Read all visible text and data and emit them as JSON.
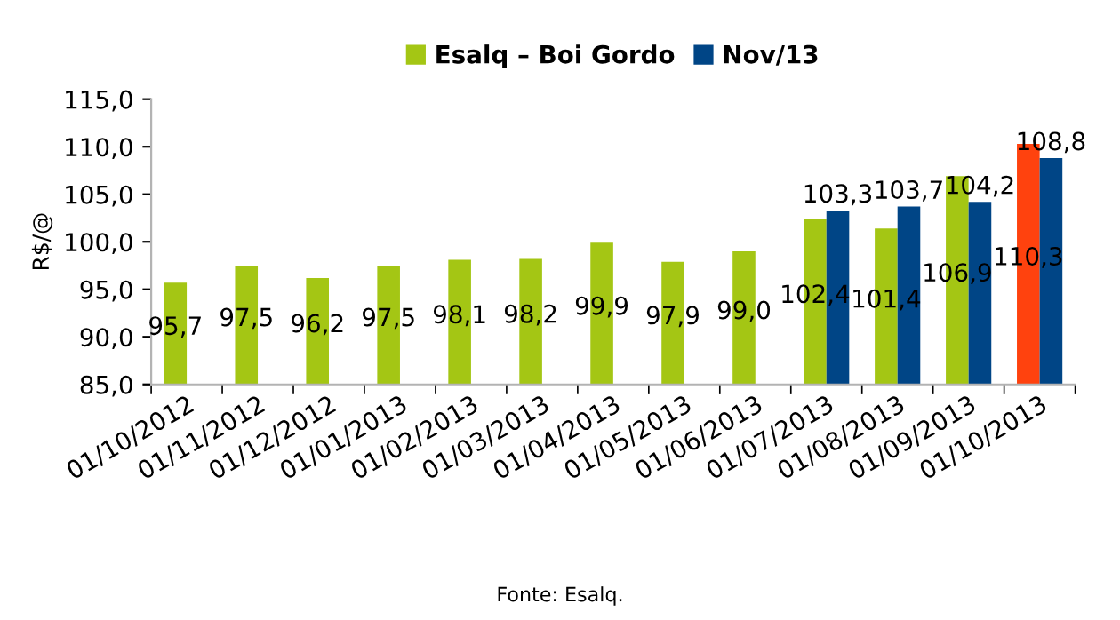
{
  "chart_data": {
    "type": "bar",
    "ylabel": "R$/@",
    "categories": [
      "01/10/2012",
      "01/11/2012",
      "01/12/2012",
      "01/01/2013",
      "01/02/2013",
      "01/03/2013",
      "01/04/2013",
      "01/05/2013",
      "01/06/2013",
      "01/07/2013",
      "01/08/2013",
      "01/09/2013",
      "01/10/2013"
    ],
    "series": [
      {
        "name": "Esalq – Boi Gordo",
        "color": "#a4c614",
        "colors": [
          "#a4c614",
          "#a4c614",
          "#a4c614",
          "#a4c614",
          "#a4c614",
          "#a4c614",
          "#a4c614",
          "#a4c614",
          "#a4c614",
          "#a4c614",
          "#a4c614",
          "#a4c614",
          "#ff420e"
        ],
        "values": [
          95.7,
          97.5,
          96.2,
          97.5,
          98.1,
          98.2,
          99.9,
          97.9,
          99.0,
          102.4,
          101.4,
          106.9,
          110.3
        ],
        "value_labels": [
          "95,7",
          "97,5",
          "96,2",
          "97,5",
          "98,1",
          "98,2",
          "99,9",
          "97,9",
          "99,0",
          "102,4",
          "101,4",
          "106,9",
          "110,3"
        ]
      },
      {
        "name": "Nov/13",
        "color": "#004586",
        "values": [
          null,
          null,
          null,
          null,
          null,
          null,
          null,
          null,
          null,
          103.3,
          103.7,
          104.2,
          108.8
        ],
        "value_labels": [
          null,
          null,
          null,
          null,
          null,
          null,
          null,
          null,
          null,
          "103,3",
          "103,7",
          "104,2",
          "108,8"
        ]
      }
    ],
    "ylim": [
      85,
      115
    ],
    "yticks": [
      {
        "value": 85,
        "label": "85,0"
      },
      {
        "value": 90,
        "label": "90,0"
      },
      {
        "value": 95,
        "label": "95,0"
      },
      {
        "value": 100,
        "label": "100,0"
      },
      {
        "value": 105,
        "label": "105,0"
      },
      {
        "value": 110,
        "label": "110,0"
      },
      {
        "value": 115,
        "label": "115,0"
      }
    ],
    "grid": false,
    "legend": "top",
    "annotations": [
      "Fonte: Esalq."
    ]
  }
}
